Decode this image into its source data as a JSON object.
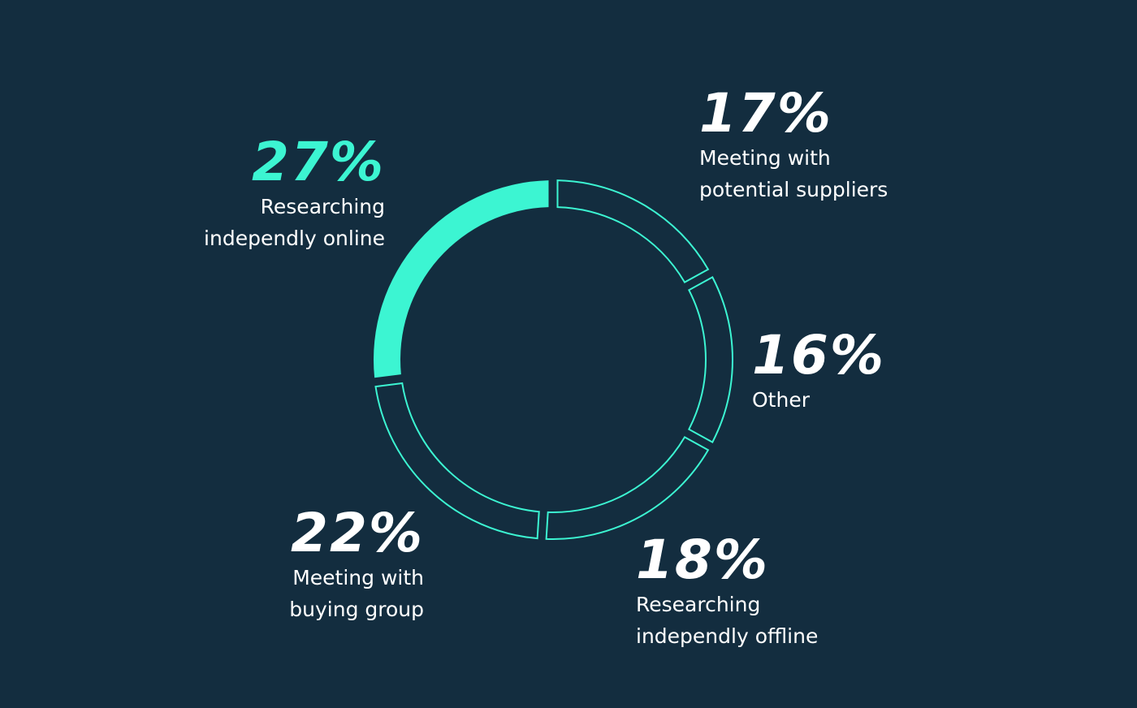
{
  "colors": {
    "background": "#132d3f",
    "accent": "#3cf5d2",
    "text": "#ffffff"
  },
  "chart_data": {
    "type": "donut",
    "highlighted": "Researching independly online",
    "slices": [
      {
        "key": "online",
        "label": "Researching independly online",
        "label_lines": [
          "Researching",
          "independly online"
        ],
        "value": 27,
        "display": "27%",
        "filled": true
      },
      {
        "key": "suppliers",
        "label": "Meeting with potential suppliers",
        "label_lines": [
          "Meeting with",
          "potential suppliers"
        ],
        "value": 17,
        "display": "17%",
        "filled": false
      },
      {
        "key": "other",
        "label": "Other",
        "label_lines": [
          "Other"
        ],
        "value": 16,
        "display": "16%",
        "filled": false
      },
      {
        "key": "offline",
        "label": "Researching independly offline",
        "label_lines": [
          "Researching",
          "independly offline"
        ],
        "value": 18,
        "display": "18%",
        "filled": false
      },
      {
        "key": "buying",
        "label": "Meeting with buying group",
        "label_lines": [
          "Meeting with",
          "buying group"
        ],
        "value": 22,
        "display": "22%",
        "filled": false
      }
    ]
  }
}
